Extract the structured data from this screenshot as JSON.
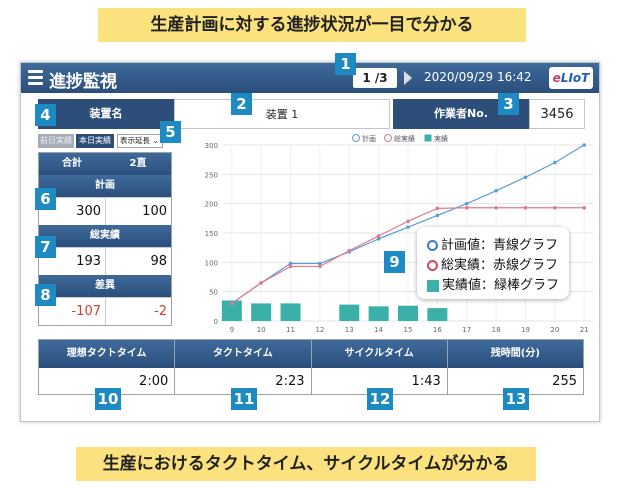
{
  "callouts": {
    "top": "生産計画に対する進捗状況が一目で分かる",
    "bottom": "生産におけるタクトタイム、サイクルタイムが分かる"
  },
  "header": {
    "title": "進捗監視",
    "page_indicator": "1 /3",
    "datetime": "2020/09/29 16:42",
    "logo_e": "e",
    "logo_rest": "LIoT"
  },
  "device": {
    "label": "装置名",
    "value": "装置 1"
  },
  "worker": {
    "label": "作業者No.",
    "value": "3456"
  },
  "tabs": {
    "previous_day": "前日実績",
    "today": "本日実績"
  },
  "display_select": {
    "selected": "表示延長"
  },
  "stats": {
    "col1": "合計",
    "col2": "2直",
    "plan": {
      "label": "計画",
      "total": "300",
      "shift2": "100"
    },
    "actual": {
      "label": "総実績",
      "total": "193",
      "shift2": "98"
    },
    "diff": {
      "label": "差異",
      "total": "-107",
      "shift2": "-2"
    }
  },
  "legend_box": {
    "plan": "計画値：青線グラフ",
    "actual_total": "総実績：赤線グラフ",
    "actual": "実績値：緑棒グラフ"
  },
  "bottom_table": [
    {
      "label": "理想タクトタイム",
      "value": "2:00"
    },
    {
      "label": "タクトタイム",
      "value": "2:23"
    },
    {
      "label": "サイクルタイム",
      "value": "1:43"
    },
    {
      "label": "残時間(分)",
      "value": "255"
    }
  ],
  "badges": [
    "1",
    "2",
    "3",
    "4",
    "5",
    "6",
    "7",
    "8",
    "9",
    "10",
    "11",
    "12",
    "13"
  ],
  "colors": {
    "plan": "#5b9bd5",
    "actual_total": "#e07b8a",
    "actual_bar": "#3bb0a8",
    "header": "#2e4e7a"
  },
  "chart_data": {
    "type": "line",
    "x": [
      9,
      10,
      11,
      12,
      13,
      14,
      15,
      16,
      17,
      18,
      19,
      20,
      21
    ],
    "ylim": [
      0,
      300
    ],
    "yticks": [
      0,
      50,
      100,
      150,
      200,
      250,
      300
    ],
    "legend": [
      "計画",
      "総実績",
      "実績"
    ],
    "series": [
      {
        "name": "計画",
        "kind": "line",
        "values": [
          30,
          65,
          98,
          98,
          118,
          140,
          160,
          180,
          200,
          222,
          245,
          270,
          300
        ]
      },
      {
        "name": "総実績",
        "kind": "line",
        "values": [
          30,
          65,
          93,
          93,
          120,
          145,
          170,
          192,
          193,
          193,
          193,
          193,
          193
        ]
      },
      {
        "name": "実績",
        "kind": "bar",
        "values": [
          35,
          30,
          30,
          0,
          28,
          25,
          26,
          22,
          0,
          0,
          0,
          0,
          0
        ]
      }
    ]
  }
}
